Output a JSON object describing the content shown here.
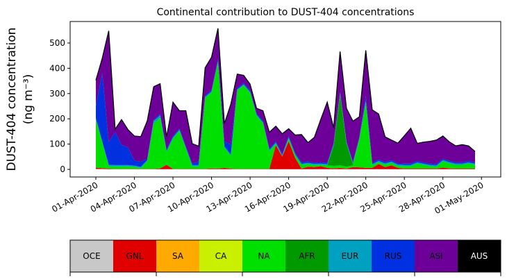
{
  "chart_data": {
    "type": "area",
    "stacked": true,
    "title": "Continental contribution to DUST-404 concentrations",
    "ylabel_line1": "DUST-404 concentration",
    "ylabel_line2": "(ng m⁻³)",
    "ylim": [
      -30,
      585
    ],
    "yticks": [
      0,
      100,
      200,
      300,
      400,
      500
    ],
    "x_start": "2020-04-01",
    "x_end": "2020-05-01",
    "xticks": [
      "01-Apr-2020",
      "04-Apr-2020",
      "07-Apr-2020",
      "10-Apr-2020",
      "13-Apr-2020",
      "16-Apr-2020",
      "19-Apr-2020",
      "22-Apr-2020",
      "25-Apr-2020",
      "28-Apr-2020",
      "01-May-2020"
    ],
    "xlim": [
      "2020-03-30T00:00",
      "2020-05-02T12:00"
    ],
    "x": [
      "2020-04-01T00:00",
      "2020-04-01T12:00",
      "2020-04-02T00:00",
      "2020-04-02T12:00",
      "2020-04-03T00:00",
      "2020-04-03T12:00",
      "2020-04-04T00:00",
      "2020-04-04T12:00",
      "2020-04-05T00:00",
      "2020-04-05T12:00",
      "2020-04-06T00:00",
      "2020-04-06T12:00",
      "2020-04-07T00:00",
      "2020-04-07T12:00",
      "2020-04-08T00:00",
      "2020-04-08T12:00",
      "2020-04-09T00:00",
      "2020-04-09T12:00",
      "2020-04-10T00:00",
      "2020-04-10T12:00",
      "2020-04-11T00:00",
      "2020-04-11T12:00",
      "2020-04-12T00:00",
      "2020-04-12T12:00",
      "2020-04-13T00:00",
      "2020-04-13T12:00",
      "2020-04-14T00:00",
      "2020-04-14T12:00",
      "2020-04-15T00:00",
      "2020-04-15T12:00",
      "2020-04-16T00:00",
      "2020-04-16T12:00",
      "2020-04-17T00:00",
      "2020-04-17T12:00",
      "2020-04-18T00:00",
      "2020-04-18T12:00",
      "2020-04-19T00:00",
      "2020-04-19T12:00",
      "2020-04-20T00:00",
      "2020-04-20T12:00",
      "2020-04-21T00:00",
      "2020-04-21T12:00",
      "2020-04-22T00:00",
      "2020-04-22T12:00",
      "2020-04-23T00:00",
      "2020-04-23T12:00",
      "2020-04-24T00:00",
      "2020-04-24T12:00",
      "2020-04-25T00:00",
      "2020-04-25T12:00",
      "2020-04-26T00:00",
      "2020-04-26T12:00",
      "2020-04-27T00:00",
      "2020-04-27T12:00",
      "2020-04-28T00:00",
      "2020-04-28T12:00",
      "2020-04-29T00:00",
      "2020-04-29T12:00",
      "2020-04-30T00:00",
      "2020-04-30T12:00"
    ],
    "series": [
      {
        "name": "OCE",
        "color": "#c8c8c8",
        "values": [
          2,
          2,
          1,
          1,
          1,
          1,
          1,
          1,
          1,
          1,
          1,
          1,
          1,
          1,
          1,
          1,
          1,
          1,
          1,
          1,
          1,
          1,
          1,
          1,
          1,
          1,
          1,
          1,
          1,
          1,
          1,
          1,
          1,
          1,
          1,
          1,
          1,
          1,
          1,
          1,
          1,
          1,
          1,
          1,
          1,
          1,
          1,
          1,
          1,
          1,
          1,
          1,
          1,
          1,
          1,
          1,
          1,
          1,
          1,
          1
        ]
      },
      {
        "name": "GNL",
        "color": "#e00000",
        "values": [
          5,
          3,
          2,
          1,
          1,
          1,
          1,
          1,
          1,
          1,
          3,
          17,
          1,
          1,
          1,
          1,
          1,
          1,
          3,
          2,
          5,
          2,
          1,
          1,
          1,
          1,
          1,
          1,
          95,
          50,
          110,
          45,
          2,
          10,
          8,
          12,
          5,
          3,
          5,
          2,
          8,
          7,
          5,
          5,
          20,
          8,
          15,
          5,
          2,
          2,
          2,
          2,
          2,
          2,
          6,
          3,
          2,
          2,
          2,
          2
        ]
      },
      {
        "name": "SA",
        "color": "#ffaa00",
        "values": [
          0,
          0,
          0,
          0,
          0,
          0,
          0,
          0,
          0,
          0,
          0,
          0,
          0,
          0,
          0,
          0,
          0,
          0,
          0,
          0,
          0,
          0,
          0,
          0,
          0,
          0,
          0,
          0,
          0,
          0,
          0,
          0,
          0,
          0,
          0,
          0,
          0,
          0,
          0,
          0,
          0,
          0,
          0,
          0,
          0,
          0,
          0,
          0,
          0,
          0,
          0,
          0,
          0,
          0,
          0,
          0,
          0,
          0,
          0,
          0
        ]
      },
      {
        "name": "CA",
        "color": "#c8f000",
        "values": [
          0,
          0,
          0,
          0,
          0,
          0,
          0,
          0,
          0,
          0,
          0,
          0,
          0,
          0,
          0,
          0,
          0,
          0,
          0,
          0,
          0,
          0,
          0,
          0,
          0,
          0,
          0,
          0,
          0,
          0,
          0,
          0,
          0,
          0,
          0,
          0,
          0,
          0,
          0,
          0,
          0,
          0,
          0,
          0,
          0,
          0,
          0,
          0,
          0,
          0,
          0,
          0,
          0,
          0,
          0,
          0,
          0,
          0,
          0,
          0
        ]
      },
      {
        "name": "NA",
        "color": "#00e000",
        "values": [
          190,
          100,
          10,
          10,
          10,
          10,
          8,
          3,
          30,
          180,
          200,
          50,
          120,
          150,
          80,
          10,
          10,
          280,
          300,
          420,
          80,
          50,
          310,
          330,
          300,
          210,
          180,
          70,
          5,
          0,
          10,
          10,
          15,
          10,
          8,
          5,
          10,
          10,
          10,
          8,
          7,
          110,
          260,
          10,
          8,
          10,
          10,
          8,
          10,
          10,
          20,
          15,
          10,
          8,
          25,
          20,
          15,
          15,
          20,
          15
        ]
      },
      {
        "name": "AFR",
        "color": "#009900",
        "values": [
          0,
          0,
          0,
          0,
          0,
          0,
          0,
          0,
          0,
          0,
          0,
          0,
          0,
          0,
          0,
          0,
          0,
          0,
          0,
          0,
          0,
          0,
          0,
          0,
          0,
          0,
          0,
          0,
          0,
          0,
          0,
          0,
          0,
          0,
          0,
          0,
          0,
          80,
          280,
          90,
          5,
          0,
          0,
          0,
          0,
          0,
          0,
          0,
          0,
          0,
          0,
          0,
          0,
          0,
          0,
          0,
          0,
          0,
          0,
          0
        ]
      },
      {
        "name": "EUR",
        "color": "#00a0c0",
        "values": [
          5,
          5,
          5,
          5,
          5,
          5,
          5,
          5,
          5,
          10,
          10,
          5,
          5,
          5,
          5,
          5,
          5,
          5,
          5,
          5,
          5,
          5,
          5,
          5,
          5,
          5,
          5,
          5,
          5,
          5,
          5,
          5,
          5,
          5,
          5,
          5,
          5,
          5,
          5,
          5,
          5,
          5,
          5,
          5,
          5,
          5,
          5,
          5,
          5,
          5,
          5,
          5,
          5,
          5,
          5,
          5,
          5,
          5,
          5,
          5
        ]
      },
      {
        "name": "RUS",
        "color": "#0030e0",
        "values": [
          50,
          270,
          90,
          130,
          80,
          70,
          20,
          20,
          5,
          5,
          5,
          5,
          5,
          5,
          5,
          5,
          15,
          5,
          5,
          10,
          20,
          40,
          5,
          5,
          5,
          5,
          5,
          5,
          5,
          5,
          5,
          5,
          5,
          5,
          5,
          5,
          5,
          5,
          5,
          5,
          5,
          5,
          20,
          5,
          5,
          5,
          5,
          5,
          5,
          5,
          5,
          5,
          5,
          5,
          5,
          5,
          5,
          5,
          5,
          5
        ]
      },
      {
        "name": "ASI",
        "color": "#6c0099",
        "values": [
          100,
          60,
          440,
          12,
          100,
          70,
          97,
          100,
          150,
          130,
          120,
          50,
          134,
          70,
          140,
          80,
          60,
          110,
          130,
          120,
          70,
          160,
          55,
          30,
          25,
          20,
          40,
          65,
          60,
          80,
          30,
          70,
          110,
          75,
          100,
          170,
          240,
          60,
          160,
          130,
          160,
          80,
          180,
          210,
          180,
          100,
          80,
          80,
          110,
          140,
          70,
          80,
          88,
          95,
          90,
          75,
          65,
          70,
          60,
          43
        ]
      },
      {
        "name": "AUS",
        "color": "#000000",
        "values": [
          0,
          0,
          0,
          0,
          0,
          0,
          0,
          0,
          0,
          0,
          0,
          0,
          0,
          0,
          0,
          0,
          0,
          0,
          0,
          0,
          0,
          0,
          0,
          0,
          0,
          0,
          0,
          0,
          0,
          0,
          0,
          0,
          0,
          0,
          0,
          0,
          0,
          0,
          0,
          0,
          0,
          0,
          0,
          0,
          0,
          0,
          0,
          0,
          0,
          0,
          0,
          0,
          0,
          0,
          0,
          0,
          0,
          0,
          0,
          0
        ]
      }
    ],
    "legend": [
      {
        "label": "OCE",
        "color": "#c8c8c8",
        "text_color": "#000000"
      },
      {
        "label": "GNL",
        "color": "#e00000",
        "text_color": "#000000"
      },
      {
        "label": "SA",
        "color": "#ffaa00",
        "text_color": "#000000"
      },
      {
        "label": "CA",
        "color": "#c8f000",
        "text_color": "#000000"
      },
      {
        "label": "NA",
        "color": "#00e000",
        "text_color": "#000000"
      },
      {
        "label": "AFR",
        "color": "#009900",
        "text_color": "#000000"
      },
      {
        "label": "EUR",
        "color": "#00a0c0",
        "text_color": "#000000"
      },
      {
        "label": "RUS",
        "color": "#0030e0",
        "text_color": "#000000"
      },
      {
        "label": "ASI",
        "color": "#6c0099",
        "text_color": "#000000"
      },
      {
        "label": "AUS",
        "color": "#000000",
        "text_color": "#ffffff"
      }
    ],
    "legend_placement": "bottom",
    "grid": false
  }
}
